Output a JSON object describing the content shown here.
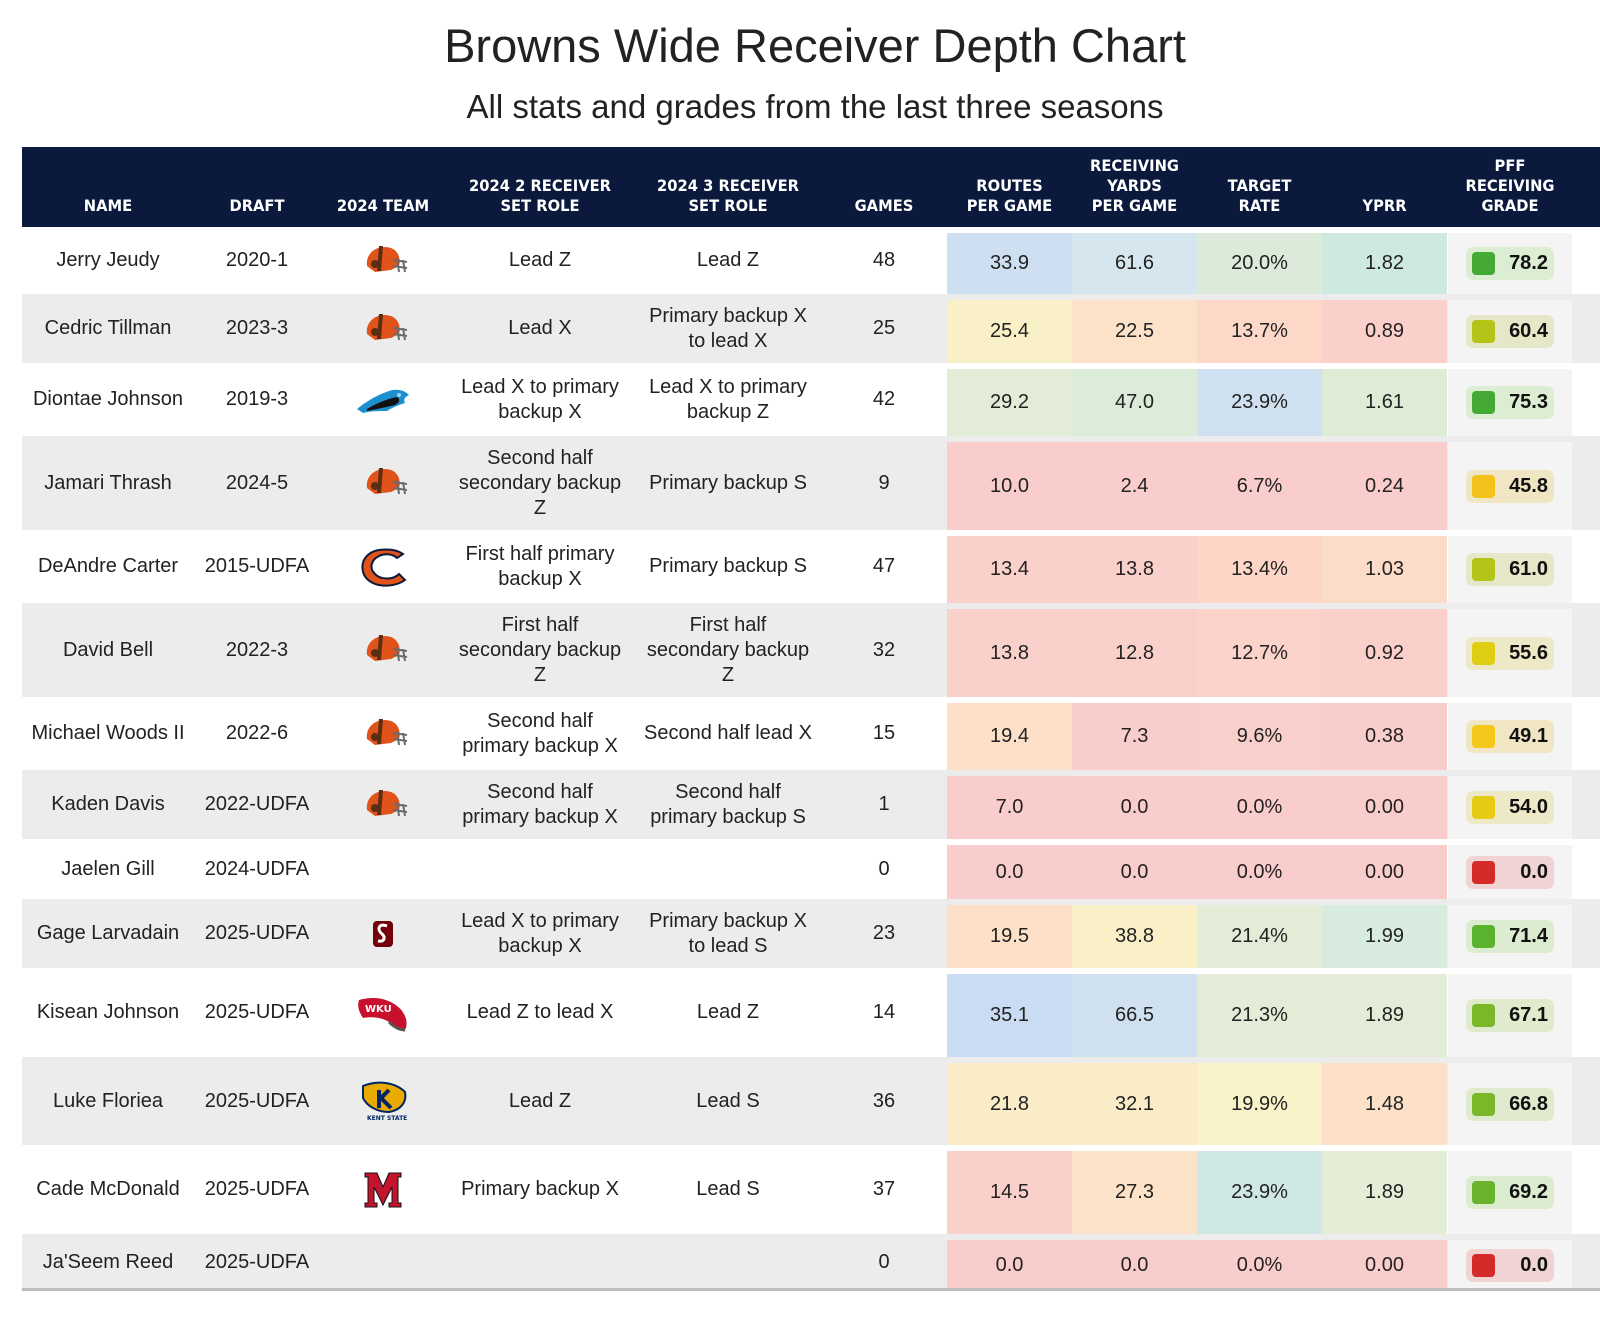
{
  "title": "Browns Wide Receiver Depth Chart",
  "subtitle": "All stats and grades from the last three seasons",
  "columns": [
    {
      "lines": [
        "NAME"
      ]
    },
    {
      "lines": [
        "DRAFT"
      ]
    },
    {
      "lines": [
        "2024 TEAM"
      ]
    },
    {
      "lines": [
        "2024 2 RECEIVER",
        "SET ROLE"
      ]
    },
    {
      "lines": [
        "2024 3 RECEIVER",
        "SET ROLE"
      ]
    },
    {
      "lines": [
        "GAMES"
      ]
    },
    {
      "lines": [
        "ROUTES",
        "PER GAME"
      ]
    },
    {
      "lines": [
        "RECEIVING",
        "YARDS",
        "PER GAME"
      ]
    },
    {
      "lines": [
        "TARGET",
        "RATE"
      ]
    },
    {
      "lines": [
        "YPRR"
      ]
    },
    {
      "lines": [
        "PFF",
        "RECEIVING",
        "GRADE"
      ]
    }
  ],
  "chart_data": {
    "type": "table",
    "title": "Browns Wide Receiver Depth Chart",
    "subtitle": "All stats and grades from the last three seasons",
    "rows": [
      {
        "name": "Jerry Jeudy",
        "draft": "2020-1",
        "team": "browns-helmet-icon",
        "role2": "Lead Z",
        "role3": "Lead Z",
        "games": "48",
        "routes": "33.9",
        "yards": "61.6",
        "target": "20.0%",
        "yprr": "1.82",
        "grade": "78.2",
        "colors": {
          "routes": "#cddff0",
          "yards": "#d6e6ee",
          "target": "#dcebd9",
          "yprr": "#cde9e0",
          "grade_box": "#44aa33",
          "grade_bg": "#dbedd3"
        }
      },
      {
        "name": "Cedric Tillman",
        "draft": "2023-3",
        "team": "browns-helmet-icon",
        "role2": "Lead X",
        "role3": "Primary backup X to lead X",
        "games": "25",
        "routes": "25.4",
        "yards": "22.5",
        "target": "13.7%",
        "yprr": "0.89",
        "grade": "60.4",
        "colors": {
          "routes": "#faf0c8",
          "yards": "#fce2c8",
          "target": "#fdd7c8",
          "yprr": "#fbd0cb",
          "grade_box": "#b5c419",
          "grade_bg": "#e6e7c8"
        }
      },
      {
        "name": "Diontae Johnson",
        "draft": "2019-3",
        "team": "panthers-logo-icon",
        "role2": "Lead X to primary backup X",
        "role3": "Lead X to primary backup Z",
        "games": "42",
        "routes": "29.2",
        "yards": "47.0",
        "target": "23.9%",
        "yprr": "1.61",
        "grade": "75.3",
        "colors": {
          "routes": "#e2ecd6",
          "yards": "#dbecd9",
          "target": "#cfe0f0",
          "yprr": "#deecd6",
          "grade_box": "#44aa33",
          "grade_bg": "#dbedd3"
        }
      },
      {
        "name": "Jamari Thrash",
        "draft": "2024-5",
        "team": "browns-helmet-icon",
        "role2": "Second half secondary backup Z",
        "role3": "Primary backup S",
        "games": "9",
        "routes": "10.0",
        "yards": "2.4",
        "target": "6.7%",
        "yprr": "0.24",
        "grade": "45.8",
        "colors": {
          "routes": "#f9cdcb",
          "yards": "#f9cdcb",
          "target": "#f9cdcb",
          "yprr": "#f9cdcb",
          "grade_box": "#f4c21a",
          "grade_bg": "#f1e6c4"
        }
      },
      {
        "name": "DeAndre Carter",
        "draft": "2015-UDFA",
        "team": "bears-logo-icon",
        "role2": "First half primary backup X",
        "role3": "Primary backup S",
        "games": "47",
        "routes": "13.4",
        "yards": "13.8",
        "target": "13.4%",
        "yprr": "1.03",
        "grade": "61.0",
        "colors": {
          "routes": "#fad0cb",
          "yards": "#fad0cb",
          "target": "#fdd6c8",
          "yprr": "#fcdcc8",
          "grade_box": "#b5c419",
          "grade_bg": "#e6e7c8"
        }
      },
      {
        "name": "David Bell",
        "draft": "2022-3",
        "team": "browns-helmet-icon",
        "role2": "First half secondary backup Z",
        "role3": "First half secondary backup Z",
        "games": "32",
        "routes": "13.8",
        "yards": "12.8",
        "target": "12.7%",
        "yprr": "0.92",
        "grade": "55.6",
        "colors": {
          "routes": "#fad0cb",
          "yards": "#fad0cb",
          "target": "#fcd3ca",
          "yprr": "#fbd0cb",
          "grade_box": "#dfcd14",
          "grade_bg": "#ede8c6"
        }
      },
      {
        "name": "Michael Woods II",
        "draft": "2022-6",
        "team": "browns-helmet-icon",
        "role2": "Second half primary backup X",
        "role3": "Second half lead X",
        "games": "15",
        "routes": "19.4",
        "yards": "7.3",
        "target": "9.6%",
        "yprr": "0.38",
        "grade": "49.1",
        "colors": {
          "routes": "#fce0c8",
          "yards": "#f9cdcb",
          "target": "#f9cfcb",
          "yprr": "#f9cdcb",
          "grade_box": "#f4c81a",
          "grade_bg": "#f1e6c4"
        }
      },
      {
        "name": "Kaden Davis",
        "draft": "2022-UDFA",
        "team": "browns-helmet-icon",
        "role2": "Second half primary backup X",
        "role3": "Second half primary backup S",
        "games": "1",
        "routes": "7.0",
        "yards": "0.0",
        "target": "0.0%",
        "yprr": "0.00",
        "grade": "54.0",
        "colors": {
          "routes": "#f9cdcb",
          "yards": "#f9cdcb",
          "target": "#f9cdcb",
          "yprr": "#f9cdcb",
          "grade_box": "#e5cb14",
          "grade_bg": "#ede8c6"
        }
      },
      {
        "name": "Jaelen Gill",
        "draft": "2024-UDFA",
        "team": "",
        "role2": "",
        "role3": "",
        "games": "0",
        "routes": "0.0",
        "yards": "0.0",
        "target": "0.0%",
        "yprr": "0.00",
        "grade": "0.0",
        "colors": {
          "routes": "#f9cdcb",
          "yards": "#f9cdcb",
          "target": "#f9cdcb",
          "yprr": "#f9cdcb",
          "grade_box": "#d42a2a",
          "grade_bg": "#f0d3d3"
        }
      },
      {
        "name": "Gage Larvadain",
        "draft": "2025-UDFA",
        "team": "south-carolina-logo-icon",
        "role2": "Lead X to primary backup X",
        "role3": "Primary backup X to lead S",
        "games": "23",
        "routes": "19.5",
        "yards": "38.8",
        "target": "21.4%",
        "yprr": "1.99",
        "grade": "71.4",
        "colors": {
          "routes": "#fce0c8",
          "yards": "#faf0c8",
          "target": "#e2ecd6",
          "yprr": "#d7ebdf",
          "grade_box": "#5bb22c",
          "grade_bg": "#dcecd0"
        }
      },
      {
        "name": "Kisean Johnson",
        "draft": "2025-UDFA",
        "team": "wku-logo-icon",
        "role2": "Lead Z to lead X",
        "role3": "Lead Z",
        "games": "14",
        "routes": "35.1",
        "yards": "66.5",
        "target": "21.3%",
        "yprr": "1.89",
        "grade": "67.1",
        "colors": {
          "routes": "#c9dcf4",
          "yards": "#cfe0f0",
          "target": "#e2ecd6",
          "yprr": "#e2ecd6",
          "grade_box": "#7ab82a",
          "grade_bg": "#e0ebce"
        }
      },
      {
        "name": "Luke Floriea",
        "draft": "2025-UDFA",
        "team": "kent-state-logo-icon",
        "role2": "Lead Z",
        "role3": "Lead S",
        "games": "36",
        "routes": "21.8",
        "yards": "32.1",
        "target": "19.9%",
        "yprr": "1.48",
        "grade": "66.8",
        "colors": {
          "routes": "#fbecc8",
          "yards": "#fbecc8",
          "target": "#faf2c8",
          "yprr": "#fce1c8",
          "grade_box": "#7ab82a",
          "grade_bg": "#e0ebce"
        }
      },
      {
        "name": "Cade McDonald",
        "draft": "2025-UDFA",
        "team": "miami-oh-logo-icon",
        "role2": "Primary backup X",
        "role3": "Lead S",
        "games": "37",
        "routes": "14.5",
        "yards": "27.3",
        "target": "23.9%",
        "yprr": "1.89",
        "grade": "69.2",
        "colors": {
          "routes": "#fad0cb",
          "yards": "#fce2c8",
          "target": "#cfe7e5",
          "yprr": "#e4edd6",
          "grade_box": "#68b22c",
          "grade_bg": "#dcecd0"
        }
      },
      {
        "name": "Ja'Seem Reed",
        "draft": "2025-UDFA",
        "team": "",
        "role2": "",
        "role3": "",
        "games": "0",
        "routes": "0.0",
        "yards": "0.0",
        "target": "0.0%",
        "yprr": "0.00",
        "grade": "0.0",
        "colors": {
          "routes": "#f9cdcb",
          "yards": "#f9cdcb",
          "target": "#f9cdcb",
          "yprr": "#f9cdcb",
          "grade_box": "#d42a2a",
          "grade_bg": "#f0d3d3"
        }
      }
    ]
  }
}
